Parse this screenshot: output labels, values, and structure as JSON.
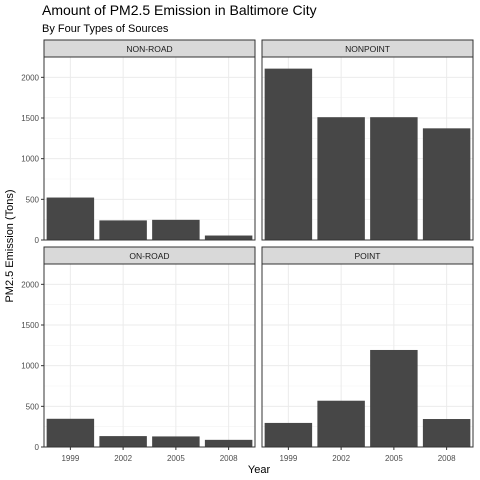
{
  "chart_data": {
    "type": "bar",
    "title": "Amount of PM2.5 Emission in Baltimore City",
    "subtitle": "By Four Types of Sources",
    "xlabel": "Year",
    "ylabel": "PM2.5 Emission (Tons)",
    "categories": [
      "1999",
      "2002",
      "2005",
      "2008"
    ],
    "ylim": [
      0,
      2250
    ],
    "yticks": [
      0,
      500,
      1000,
      1500,
      2000
    ],
    "grid": true,
    "bar_color": "#474747",
    "facets": [
      {
        "name": "NON-ROAD",
        "values": [
          522,
          241,
          248,
          55
        ]
      },
      {
        "name": "NONPOINT",
        "values": [
          2107,
          1510,
          1510,
          1373
        ]
      },
      {
        "name": "ON-ROAD",
        "values": [
          347,
          134,
          130,
          88
        ]
      },
      {
        "name": "POINT",
        "values": [
          296,
          569,
          1193,
          344
        ]
      }
    ]
  }
}
